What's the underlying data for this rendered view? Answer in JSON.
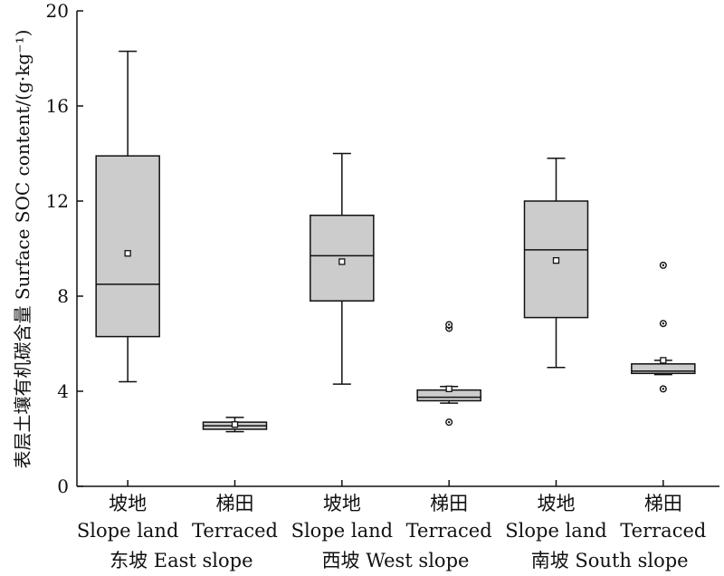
{
  "chart_data": {
    "type": "box",
    "ylabel": "表层土壤有机碳含量 Surface SOC content/(g·kg⁻¹)",
    "ylim": [
      0,
      20
    ],
    "yticks": [
      0,
      4,
      8,
      12,
      16,
      20
    ],
    "grid": false,
    "boxes": [
      {
        "cat_cn": "坡地",
        "cat_en": "Slope land",
        "group": "东坡 East slope",
        "whisker_low": 4.4,
        "q1": 6.3,
        "median": 8.5,
        "q3": 13.9,
        "whisker_high": 18.3,
        "mean": 9.8,
        "outliers": []
      },
      {
        "cat_cn": "梯田",
        "cat_en": "Terraced",
        "group": "东坡 East slope",
        "whisker_low": 2.3,
        "q1": 2.4,
        "median": 2.55,
        "q3": 2.7,
        "whisker_high": 2.9,
        "mean": 2.6,
        "outliers": []
      },
      {
        "cat_cn": "坡地",
        "cat_en": "Slope land",
        "group": "西坡 West slope",
        "whisker_low": 4.3,
        "q1": 7.8,
        "median": 9.7,
        "q3": 11.4,
        "whisker_high": 14.0,
        "mean": 9.45,
        "outliers": []
      },
      {
        "cat_cn": "梯田",
        "cat_en": "Terraced",
        "group": "西坡 West slope",
        "whisker_low": 3.5,
        "q1": 3.6,
        "median": 3.75,
        "q3": 4.05,
        "whisker_high": 4.2,
        "mean": 4.1,
        "outliers": [
          2.7,
          6.65,
          6.8
        ]
      },
      {
        "cat_cn": "坡地",
        "cat_en": "Slope land",
        "group": "南坡 South slope",
        "whisker_low": 5.0,
        "q1": 7.1,
        "median": 9.95,
        "q3": 12.0,
        "whisker_high": 13.8,
        "mean": 9.5,
        "outliers": []
      },
      {
        "cat_cn": "梯田",
        "cat_en": "Terraced",
        "group": "南坡 South slope",
        "whisker_low": 4.7,
        "q1": 4.75,
        "median": 4.85,
        "q3": 5.15,
        "whisker_high": 5.3,
        "mean": 5.3,
        "outliers": [
          4.1,
          6.85,
          9.3
        ]
      }
    ],
    "groups": [
      "东坡 East slope",
      "西坡 West slope",
      "南坡 South slope"
    ],
    "colors": {
      "box_fill": "#cccccc",
      "stroke": "#111111",
      "background": "#ffffff"
    }
  }
}
